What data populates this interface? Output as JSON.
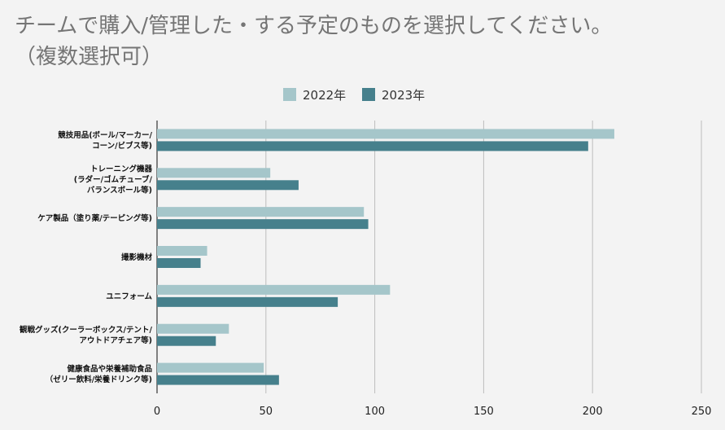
{
  "chart_data": {
    "type": "bar",
    "orientation": "horizontal",
    "title_line1": "チームで購入/管理した・する予定のものを選択してください。",
    "title_line2": "（複数選択可）",
    "categories": [
      [
        "競技用品(ボール/マーカー/",
        "コーン/ビブス等)"
      ],
      [
        "トレーニング機器",
        "(ラダー/ゴムチューブ/",
        "バランスボール等)"
      ],
      [
        "ケア製品（塗り薬/テーピング等)"
      ],
      [
        "撮影機材"
      ],
      [
        "ユニフォーム"
      ],
      [
        "観戦グッズ(クーラーボックス/テント/",
        "アウトドアチェア等)"
      ],
      [
        "健康食品や栄養補助食品",
        "（ゼリー飲料/栄養ドリンク等)"
      ]
    ],
    "series": [
      {
        "name": "2022年",
        "color": "#a5c6ca",
        "values": [
          210,
          52,
          95,
          23,
          107,
          33,
          49
        ]
      },
      {
        "name": "2023年",
        "color": "#46808c",
        "values": [
          198,
          65,
          97,
          20,
          83,
          27,
          56
        ]
      }
    ],
    "xlim": [
      0,
      250
    ],
    "xticks": [
      0,
      50,
      100,
      150,
      200,
      250
    ],
    "legend_position": "top-center",
    "grid": true,
    "xlabel": "",
    "ylabel": ""
  }
}
